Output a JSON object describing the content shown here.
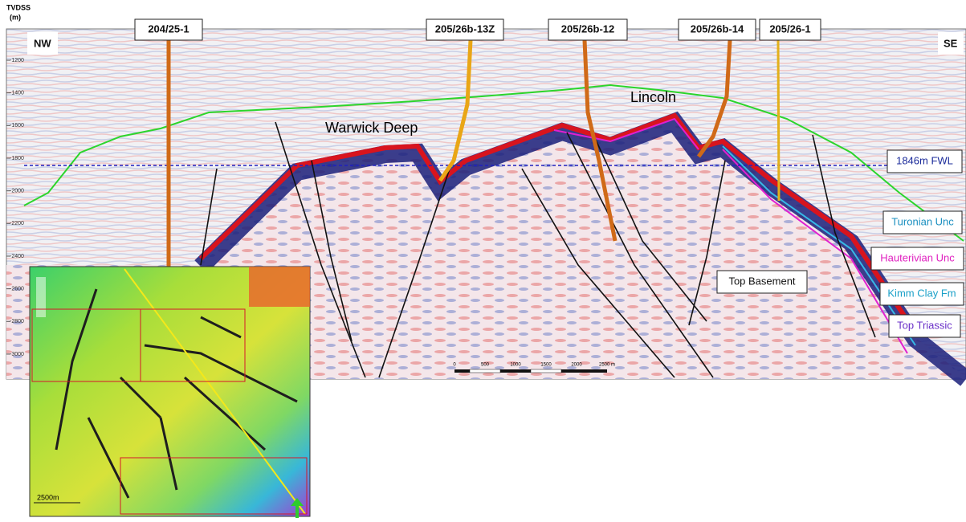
{
  "depth_axis": {
    "title_line1": "TVDSS",
    "title_line2": "(m)",
    "ticks": [
      -1200,
      -1400,
      -1600,
      -1800,
      -2000,
      -2200,
      -2400,
      -2600,
      -2800,
      -3000
    ]
  },
  "section": {
    "left_label": "NW",
    "right_label": "SE"
  },
  "wells": [
    "204/25-1",
    "205/26b-13Z",
    "205/26b-12",
    "205/26b-14",
    "205/26-1"
  ],
  "fields": [
    "Warwick Deep",
    "Lincoln"
  ],
  "horizons": {
    "fwl": "1846m FWL",
    "turonian": "Turonian Unc",
    "hauterivian": "Hauterivian Unc",
    "kimm": "Kimm Clay Fm",
    "triassic": "Top Triassic",
    "basement": "Top Basement"
  },
  "scale_bar": [
    "0",
    "500",
    "1000",
    "1500",
    "2000",
    "2500 m"
  ],
  "inset": {
    "scale_label": "2500m"
  }
}
